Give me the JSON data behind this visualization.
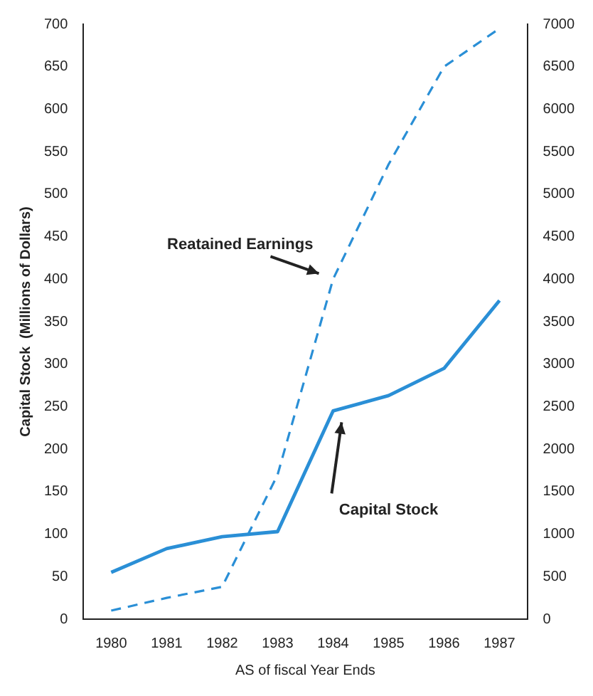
{
  "chart_data": {
    "type": "line",
    "xlabel": "AS of fiscal Year Ends",
    "ylabel": "Capital Stock  (Millions of Dollars)",
    "categories": [
      "1980",
      "1981",
      "1982",
      "1983",
      "1984",
      "1985",
      "1986",
      "1987"
    ],
    "series": [
      {
        "name": "Reatained Earnings",
        "color": "#2a8fd6",
        "axis": "y2",
        "line_style": "dashed",
        "values": [
          100,
          250,
          380,
          1700,
          4000,
          5350,
          6500,
          6950
        ]
      },
      {
        "name": "Capital Stock",
        "color": "#2a8fd6",
        "line_style": "solid",
        "values": [
          55,
          83,
          97,
          103,
          245,
          263,
          295,
          375
        ]
      }
    ],
    "ylim": [
      0,
      700
    ],
    "yticks": [
      0,
      50,
      100,
      150,
      200,
      250,
      300,
      350,
      400,
      450,
      500,
      550,
      600,
      650,
      700
    ],
    "y2lim": [
      0,
      7000
    ],
    "y2ticks": [
      0,
      500,
      1000,
      1500,
      2000,
      2500,
      3000,
      3500,
      4000,
      4500,
      5000,
      5500,
      6000,
      6500,
      7000
    ],
    "grid": false,
    "legend": false,
    "marker": "none"
  }
}
